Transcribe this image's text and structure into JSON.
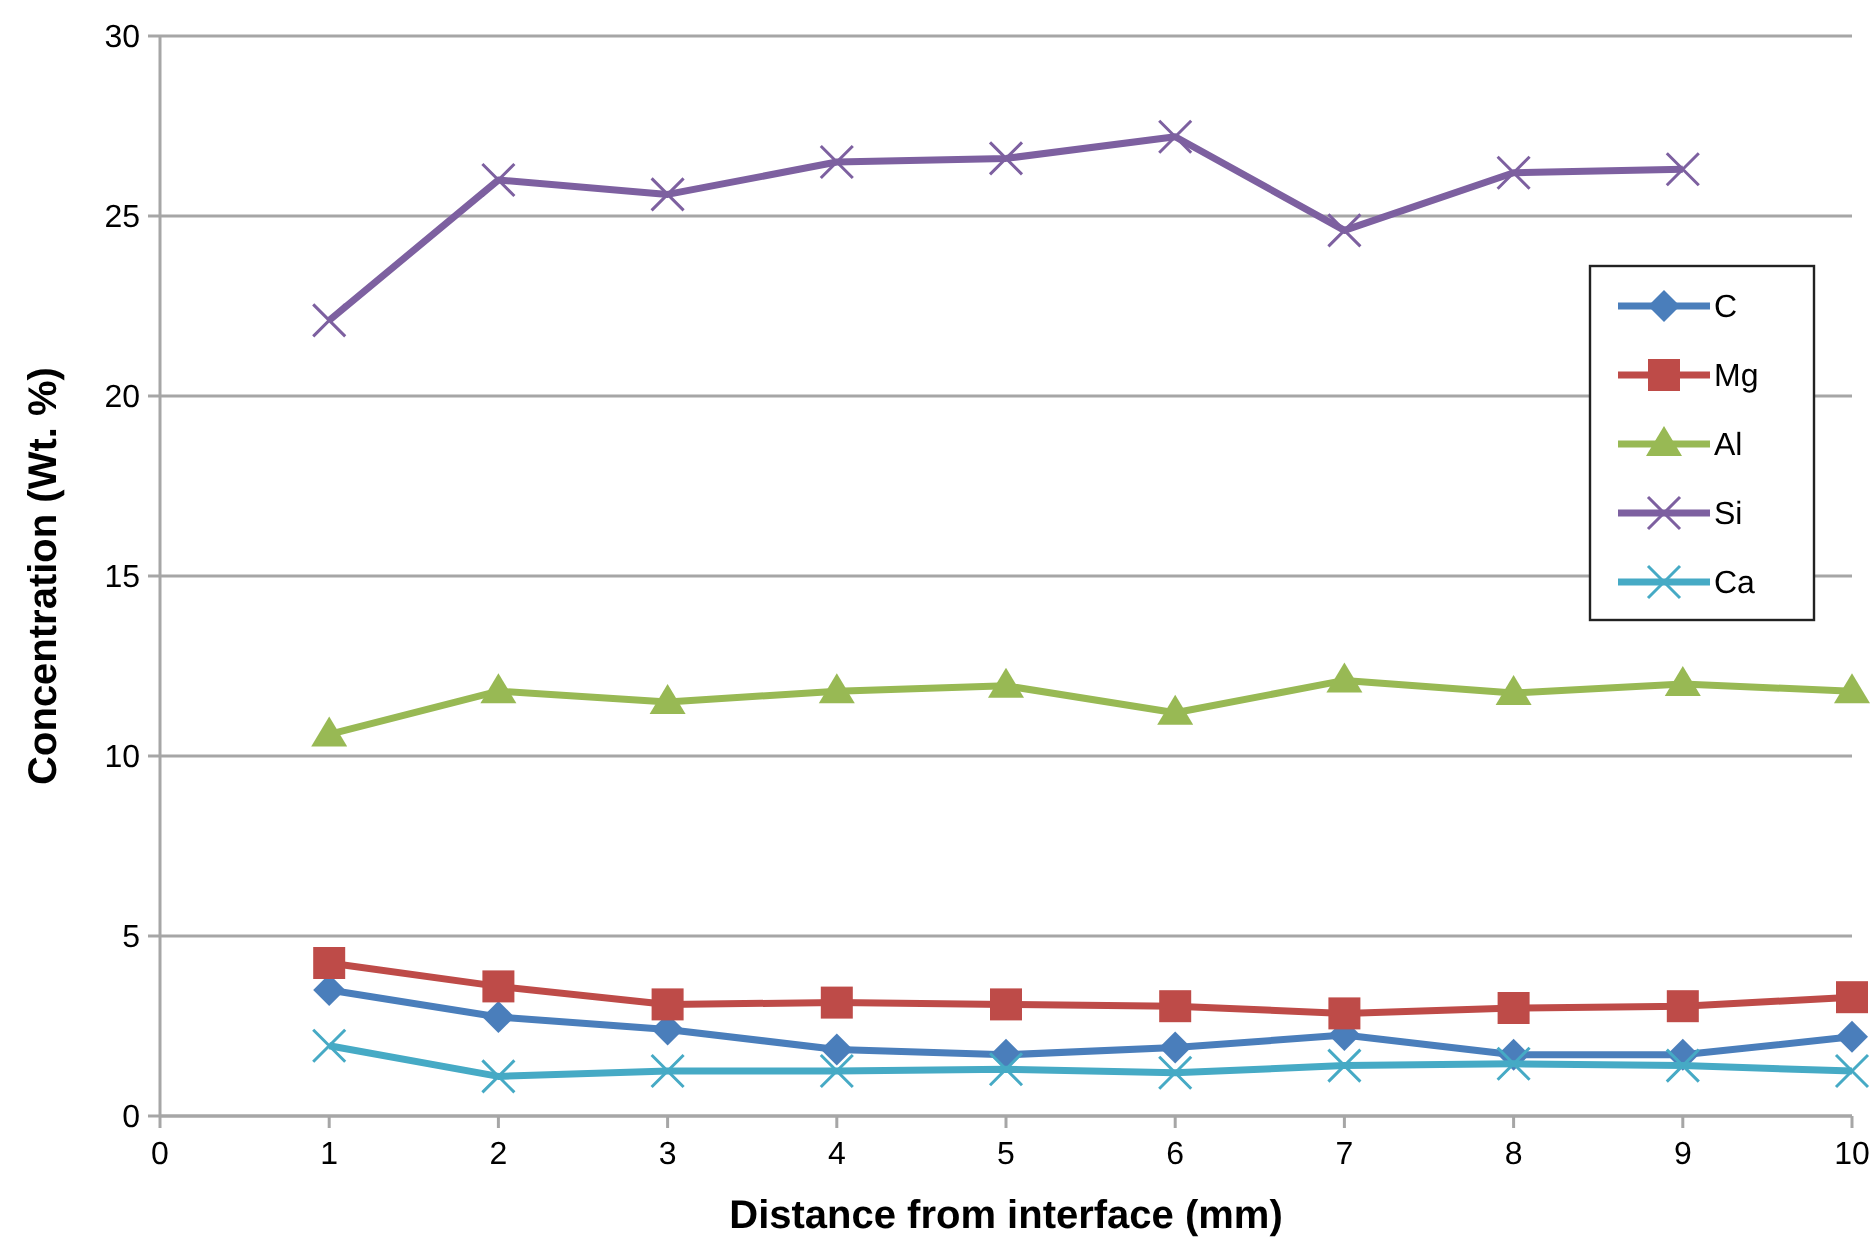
{
  "chart_data": {
    "type": "line",
    "xlabel": "Distance from interface (mm)",
    "ylabel": "Concentration (Wt. %)",
    "x": [
      1,
      2,
      3,
      4,
      5,
      6,
      7,
      8,
      9,
      10
    ],
    "xlim": [
      0,
      10
    ],
    "xticks": [
      0,
      1,
      2,
      3,
      4,
      5,
      6,
      7,
      8,
      9,
      10
    ],
    "ylim": [
      0,
      30
    ],
    "yticks": [
      0,
      5,
      10,
      15,
      20,
      25,
      30
    ],
    "grid": "y",
    "legend": "right",
    "line_style": "solid",
    "series": [
      {
        "name": "C",
        "color": "#4a7ebb",
        "marker": "diamond",
        "values": [
          3.5,
          2.75,
          2.4,
          1.85,
          1.7,
          1.9,
          2.25,
          1.7,
          1.7,
          2.2
        ]
      },
      {
        "name": "Mg",
        "color": "#be4b48",
        "marker": "square",
        "values": [
          4.25,
          3.6,
          3.1,
          3.15,
          3.1,
          3.05,
          2.85,
          3.0,
          3.05,
          3.3
        ]
      },
      {
        "name": "Al",
        "color": "#98b954",
        "marker": "triangle",
        "values": [
          10.6,
          11.8,
          11.5,
          11.8,
          11.95,
          11.2,
          12.1,
          11.75,
          12.0,
          11.8
        ]
      },
      {
        "name": "Si",
        "color": "#7d60a0",
        "marker": "cross",
        "values": [
          22.1,
          26.0,
          25.6,
          26.5,
          26.6,
          27.2,
          24.6,
          26.2,
          26.3,
          null
        ]
      },
      {
        "name": "Ca",
        "color": "#46aac5",
        "marker": "cross",
        "values": [
          1.95,
          1.1,
          1.25,
          1.25,
          1.3,
          1.2,
          1.4,
          1.45,
          1.4,
          1.25
        ]
      }
    ]
  }
}
